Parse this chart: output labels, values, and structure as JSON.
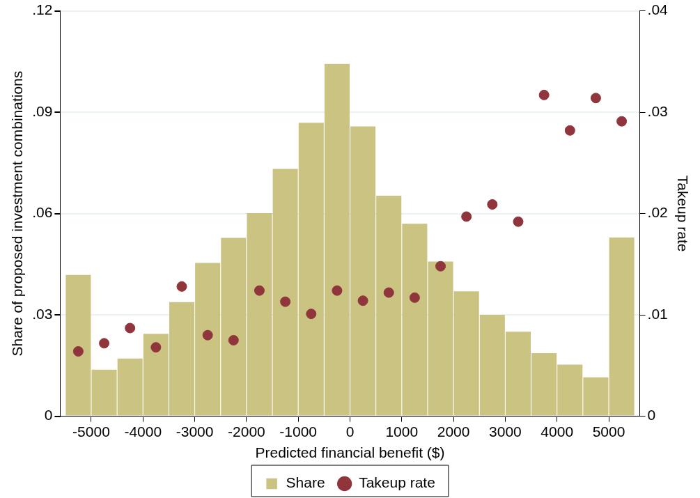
{
  "chart_data": {
    "type": "histogram",
    "xlabel": "Predicted financial benefit ($)",
    "ylabel": "Share of proposed investment combinations",
    "y2label": "Takeup rate",
    "bins": [
      -5500,
      -5000,
      -4500,
      -4000,
      -3500,
      -3000,
      -2500,
      -2000,
      -1500,
      -1000,
      -500,
      0,
      500,
      1000,
      1500,
      2000,
      2500,
      3000,
      3500,
      4000,
      4500,
      5000,
      5500
    ],
    "series": [
      {
        "type": "histogram",
        "name": "Share",
        "color": "#cbc382",
        "values": [
          0.0418,
          0.0138,
          0.0171,
          0.0244,
          0.0338,
          0.0454,
          0.0528,
          0.0601,
          0.0732,
          0.0869,
          0.1043,
          0.0858,
          0.0653,
          0.057,
          0.0458,
          0.037,
          0.03,
          0.025,
          0.0187,
          0.0153,
          0.0115,
          0.0529
        ]
      },
      {
        "type": "scatter",
        "name": "Takeup rate",
        "color": "#90353b",
        "axis": "y2",
        "marker": "circle",
        "x": [
          -5250,
          -4750,
          -4250,
          -3750,
          -3250,
          -2750,
          -2250,
          -1750,
          -1250,
          -750,
          -250,
          250,
          750,
          1250,
          1750,
          2250,
          2750,
          3250,
          3750,
          4250,
          4750,
          5250
        ],
        "values": [
          0.0064,
          0.0072,
          0.0087,
          0.0068,
          0.0128,
          0.008,
          0.0075,
          0.0124,
          0.0113,
          0.0101,
          0.0124,
          0.0114,
          0.0122,
          0.0117,
          0.0148,
          0.0197,
          0.0209,
          0.0192,
          0.0317,
          0.0282,
          0.0314,
          0.0291
        ]
      }
    ],
    "xlim": [
      -5600,
      5600
    ],
    "xticks": [
      -5000,
      -4000,
      -3000,
      -2000,
      -1000,
      0,
      1000,
      2000,
      3000,
      4000,
      5000
    ],
    "ylim": [
      0,
      0.12
    ],
    "yticks": [
      0,
      {
        "value": 0.03,
        "label": ".03"
      },
      {
        "value": 0.06,
        "label": ".06"
      },
      {
        "value": 0.09,
        "label": ".09"
      },
      {
        "value": 0.12,
        "label": ".12"
      }
    ],
    "y2lim": [
      0,
      0.04
    ],
    "y2ticks": [
      0,
      {
        "value": 0.01,
        "label": ".01"
      },
      {
        "value": 0.02,
        "label": ".02"
      },
      {
        "value": 0.03,
        "label": ".03"
      },
      {
        "value": 0.04,
        "label": ".04"
      }
    ],
    "grid": "y",
    "legend": "bottom"
  }
}
